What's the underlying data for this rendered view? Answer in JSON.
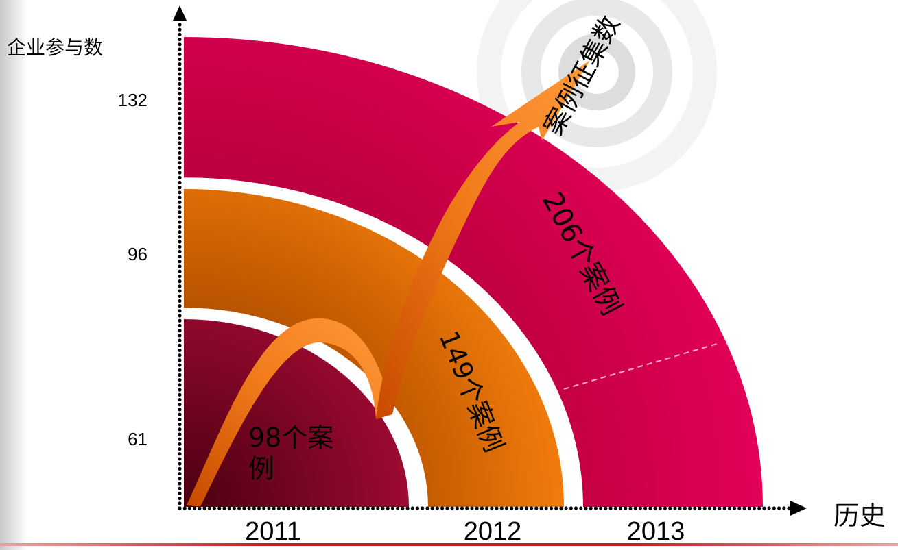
{
  "chart_data": {
    "type": "bar",
    "categories": [
      "2011",
      "2012",
      "2013"
    ],
    "values": [
      61,
      96,
      132
    ],
    "case_labels": [
      "98个案例",
      "149个案例",
      "206个案例"
    ],
    "case_counts": [
      98,
      149,
      206
    ],
    "ylabel": "企业参与数",
    "xlabel": "历史",
    "arrow_label": "案例征集数",
    "yticks": [
      "61",
      "96",
      "132"
    ],
    "colors": [
      "#8c0024",
      "#f07d10",
      "#e8005a"
    ]
  }
}
